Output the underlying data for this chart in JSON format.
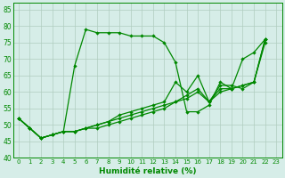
{
  "title": "",
  "xlabel": "Humidité relative (%)",
  "ylabel": "",
  "xlim": [
    -0.5,
    23.5
  ],
  "ylim": [
    40,
    87
  ],
  "yticks": [
    40,
    45,
    50,
    55,
    60,
    65,
    70,
    75,
    80,
    85
  ],
  "xticks": [
    0,
    1,
    2,
    3,
    4,
    5,
    6,
    7,
    8,
    9,
    10,
    11,
    12,
    13,
    14,
    15,
    16,
    17,
    18,
    19,
    20,
    21,
    22,
    23
  ],
  "bg_color": "#d6ede8",
  "line_color": "#008800",
  "grid_color": "#b0ccbf",
  "lines": [
    [
      52,
      49,
      46,
      47,
      48,
      68,
      79,
      78,
      78,
      78,
      77,
      77,
      77,
      75,
      69,
      54,
      54,
      56,
      63,
      61,
      70,
      72,
      76,
      null
    ],
    [
      52,
      49,
      46,
      47,
      48,
      48,
      49,
      50,
      51,
      53,
      54,
      55,
      56,
      57,
      63,
      60,
      65,
      57,
      62,
      62,
      61,
      63,
      76,
      null
    ],
    [
      52,
      49,
      46,
      47,
      48,
      48,
      49,
      50,
      51,
      52,
      53,
      54,
      55,
      56,
      57,
      59,
      61,
      57,
      60,
      61,
      62,
      63,
      76,
      null
    ],
    [
      52,
      49,
      46,
      47,
      48,
      48,
      49,
      49,
      50,
      51,
      52,
      53,
      54,
      55,
      57,
      58,
      60,
      57,
      61,
      61,
      62,
      63,
      75,
      null
    ]
  ]
}
